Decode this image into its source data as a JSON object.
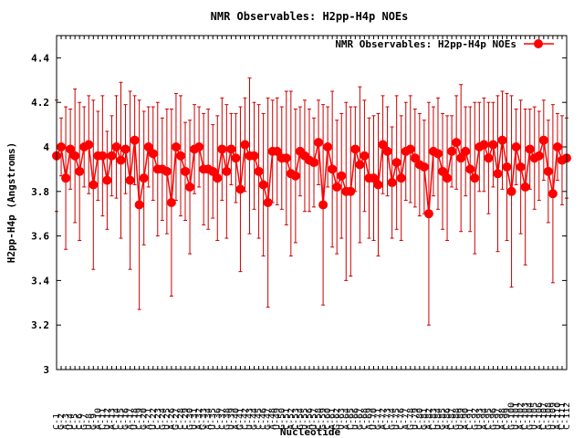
{
  "chart_data": {
    "type": "scatter",
    "title": "NMR Observables: H2pp-H4p NOEs",
    "xlabel": "Nucleotide",
    "ylabel": "H2pp-H4p (Angstroms)",
    "ylim": [
      3.0,
      4.5
    ],
    "yticks": [
      "3",
      "3.2",
      "3.4",
      "3.6",
      "3.8",
      "4",
      "4.2",
      "4.4"
    ],
    "legend": {
      "label": "NMR Observables: H2pp-H4p NOEs",
      "placement": "top-right"
    },
    "colors": {
      "series": "#ff0000",
      "errorbar": "#cc0000"
    },
    "series": [
      {
        "name": "NMR Observables: H2pp-H4p NOEs",
        "x": [
          "C-1",
          "G-2",
          "A-3",
          "U-4",
          "C-5",
          "C-6",
          "G-7",
          "U-8",
          "G-9",
          "A-10",
          "C-11",
          "U-12",
          "A-13",
          "C-14",
          "C-15",
          "G-16",
          "A-17",
          "U-18",
          "C-19",
          "G-20",
          "A-21",
          "U-22",
          "C-23",
          "G-24",
          "U-25",
          "A-26",
          "G-27",
          "C-28",
          "C-29",
          "G-30",
          "U-31",
          "A-32",
          "G-33",
          "A-34",
          "U-35",
          "C-36",
          "C-37",
          "G-38",
          "U-39",
          "A-40",
          "G-41",
          "C-42",
          "U-43",
          "G-44",
          "C-45",
          "C-46",
          "G-47",
          "A-48",
          "U-49",
          "G-50",
          "C-51",
          "A-52",
          "C-53",
          "G-54",
          "U-55",
          "A-56",
          "U-57",
          "C-58",
          "G-59",
          "C-60",
          "A-61",
          "G-62",
          "U-63",
          "A-64",
          "C-65",
          "U-66",
          "G-67",
          "C-68",
          "A-69",
          "U-70",
          "G-71",
          "A-72",
          "C-73",
          "G-74",
          "U-75",
          "C-76",
          "A-77",
          "G-78",
          "U-79",
          "C-80",
          "G-81",
          "A-82",
          "C-83",
          "U-84",
          "G-85",
          "A-86",
          "C-87",
          "G-88",
          "U-89",
          "A-90",
          "C-91",
          "G-92",
          "U-93",
          "A-94",
          "C-95",
          "G-96",
          "U-97",
          "A-98",
          "C-99",
          "G-100",
          "U-101",
          "A-102",
          "C-103",
          "G-104",
          "U-105",
          "A-106",
          "C-107",
          "G-108",
          "U-109",
          "A-110",
          "C-111",
          "C-112"
        ],
        "y": [
          3.96,
          4.0,
          3.86,
          3.99,
          3.96,
          3.89,
          4.0,
          4.01,
          3.83,
          3.96,
          3.96,
          3.85,
          3.96,
          4.0,
          3.94,
          3.99,
          3.85,
          4.03,
          3.74,
          3.86,
          4.0,
          3.97,
          3.9,
          3.9,
          3.89,
          3.75,
          4.0,
          3.96,
          3.89,
          3.82,
          3.99,
          4.0,
          3.9,
          3.9,
          3.89,
          3.86,
          3.99,
          3.89,
          3.99,
          3.95,
          3.81,
          4.01,
          3.96,
          3.96,
          3.89,
          3.83,
          3.75,
          3.98,
          3.98,
          3.95,
          3.95,
          3.88,
          3.87,
          3.98,
          3.96,
          3.94,
          3.93,
          4.02,
          3.74,
          4.0,
          3.9,
          3.82,
          3.87,
          3.8,
          3.8,
          3.99,
          3.92,
          3.96,
          3.86,
          3.86,
          3.83,
          4.01,
          3.98,
          3.84,
          3.93,
          3.86,
          3.98,
          3.99,
          3.95,
          3.92,
          3.91,
          3.7,
          3.98,
          3.97,
          3.89,
          3.86,
          3.98,
          4.02,
          3.95,
          3.98,
          3.9,
          3.86,
          4.0,
          4.01,
          3.95,
          4.01,
          3.88,
          4.03,
          3.91,
          3.8,
          4.0,
          3.91,
          3.82,
          3.99,
          3.95,
          3.96,
          4.03,
          3.89,
          3.79,
          4.0,
          3.94,
          3.95
        ],
        "err": [
          0.25,
          0.13,
          0.32,
          0.18,
          0.3,
          0.31,
          0.18,
          0.22,
          0.38,
          0.2,
          0.27,
          0.22,
          0.18,
          0.23,
          0.35,
          0.2,
          0.4,
          0.2,
          0.47,
          0.3,
          0.18,
          0.21,
          0.3,
          0.23,
          0.28,
          0.42,
          0.24,
          0.27,
          0.22,
          0.3,
          0.2,
          0.18,
          0.25,
          0.27,
          0.21,
          0.28,
          0.23,
          0.3,
          0.16,
          0.2,
          0.37,
          0.21,
          0.35,
          0.24,
          0.3,
          0.32,
          0.47,
          0.23,
          0.24,
          0.23,
          0.3,
          0.37,
          0.3,
          0.2,
          0.25,
          0.23,
          0.2,
          0.19,
          0.45,
          0.18,
          0.35,
          0.3,
          0.28,
          0.4,
          0.38,
          0.19,
          0.35,
          0.25,
          0.27,
          0.28,
          0.32,
          0.22,
          0.2,
          0.25,
          0.3,
          0.28,
          0.22,
          0.24,
          0.22,
          0.23,
          0.21,
          0.5,
          0.2,
          0.25,
          0.26,
          0.28,
          0.16,
          0.21,
          0.33,
          0.2,
          0.28,
          0.34,
          0.2,
          0.21,
          0.25,
          0.19,
          0.35,
          0.22,
          0.33,
          0.43,
          0.17,
          0.3,
          0.35,
          0.18,
          0.23,
          0.2,
          0.18,
          0.23,
          0.4,
          0.15,
          0.2,
          0.18
        ]
      }
    ]
  }
}
